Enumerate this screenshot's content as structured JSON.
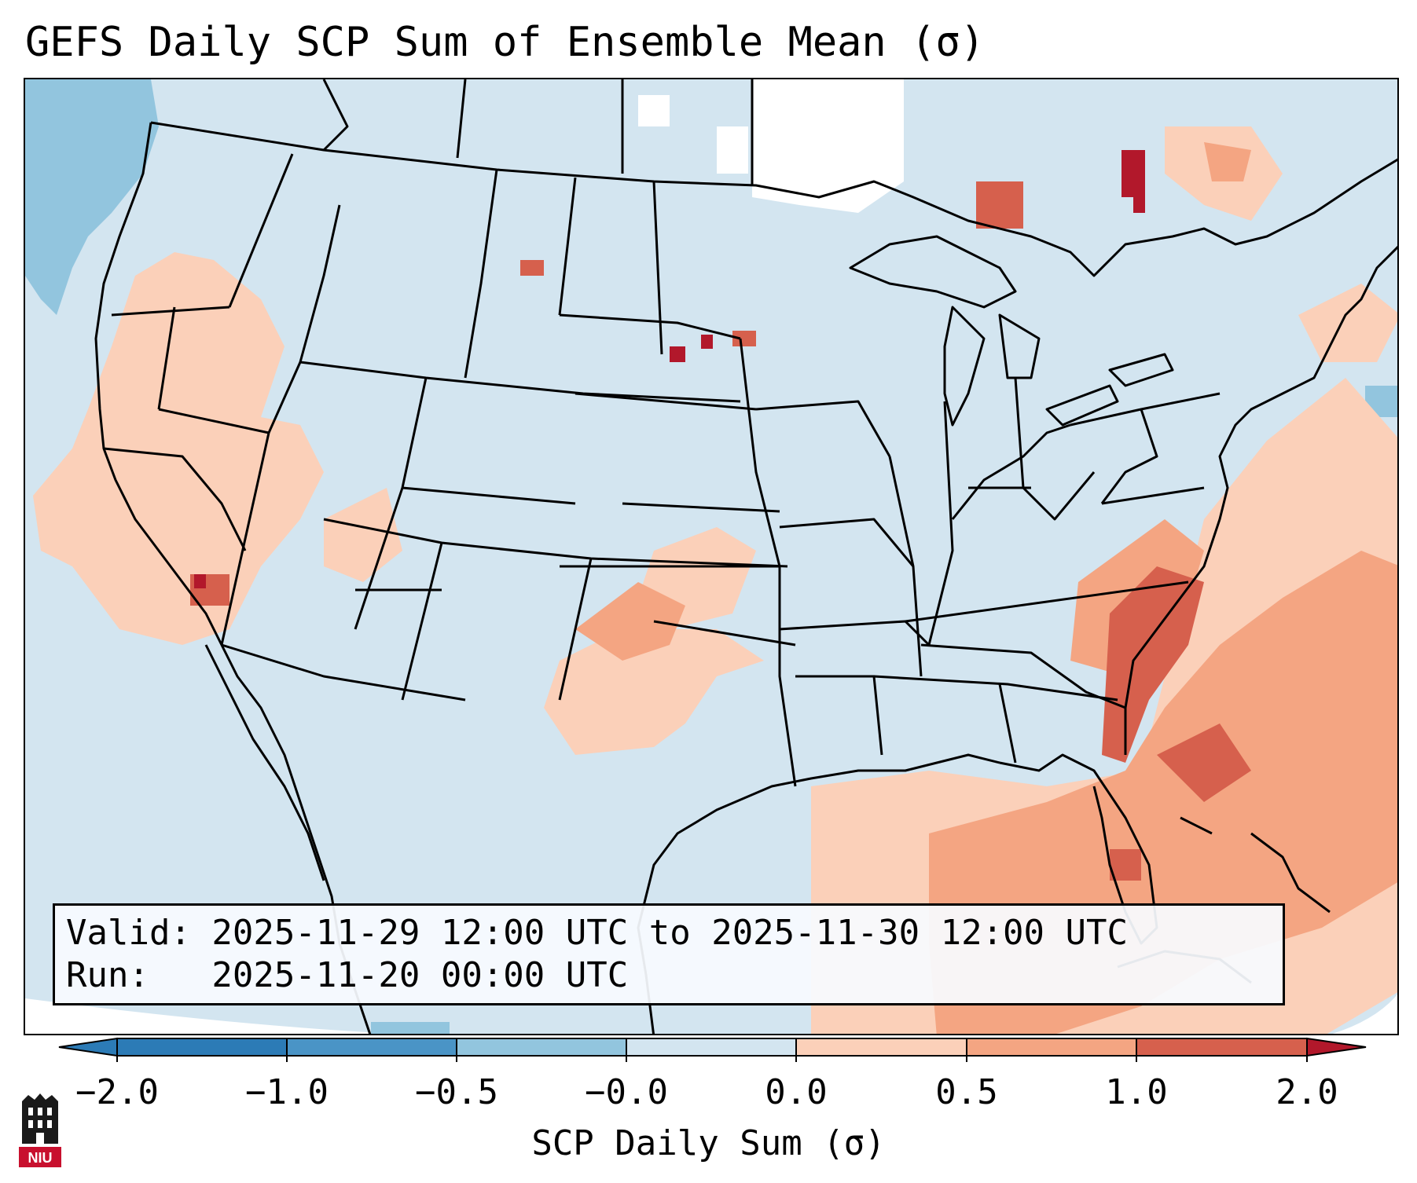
{
  "title": "GEFS Daily SCP Sum of Ensemble Mean (σ)",
  "info": {
    "valid": "Valid: 2025-11-29 12:00 UTC to 2025-11-30 12:00 UTC",
    "run": "Run:   2025-11-20 00:00 UTC"
  },
  "colorbar": {
    "label": "SCP Daily Sum (σ)",
    "ticks": [
      "−2.0",
      "−1.0",
      "−0.5",
      "−0.0",
      "0.0",
      "0.5",
      "1.0",
      "2.0"
    ],
    "colors": [
      "#2c7bb6",
      "#4a94c6",
      "#92c5de",
      "#d3e5f0",
      "#fbe4d6",
      "#fbd0b9",
      "#f4a582",
      "#d6604d",
      "#b2182b"
    ]
  },
  "legend_levels": [
    -2.0,
    -1.0,
    -0.5,
    -0.0,
    0.0,
    0.5,
    1.0,
    2.0
  ],
  "logo_text": "NIU",
  "colors": {
    "background_neutral": "#d3e5f0",
    "light_blue": "#92c5de",
    "light_red": "#fbd0b9",
    "mid_red": "#f4a582",
    "red": "#d6604d",
    "dark_red": "#b2182b"
  }
}
